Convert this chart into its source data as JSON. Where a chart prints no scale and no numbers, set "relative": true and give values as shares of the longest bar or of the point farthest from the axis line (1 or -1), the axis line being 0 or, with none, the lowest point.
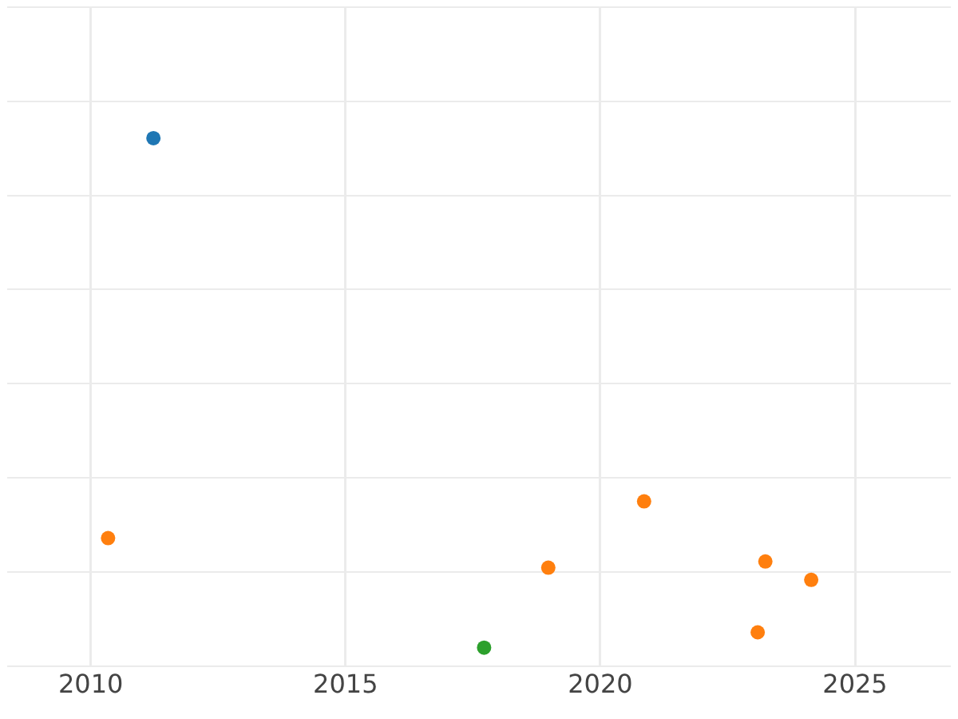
{
  "chart_data": {
    "type": "scatter",
    "relative": true,
    "xlim": [
      2008.36,
      2026.88
    ],
    "xticks": [
      2010,
      2015,
      2020,
      2025
    ],
    "grid": true,
    "legend": false,
    "marker": "circle",
    "series": [
      {
        "color": "#1f77b4",
        "x": [
          2011.23
        ],
        "values": [
          1
        ]
      },
      {
        "color": "#ff7f0e",
        "x": [
          2010.34,
          2018.98,
          2020.86,
          2023.09,
          2023.24,
          2024.14
        ],
        "values": [
          0.215,
          0.157,
          0.287,
          0.03,
          0.169,
          0.133
        ]
      },
      {
        "color": "#2ca02c",
        "x": [
          2017.72
        ],
        "values": [
          0
        ]
      }
    ]
  }
}
